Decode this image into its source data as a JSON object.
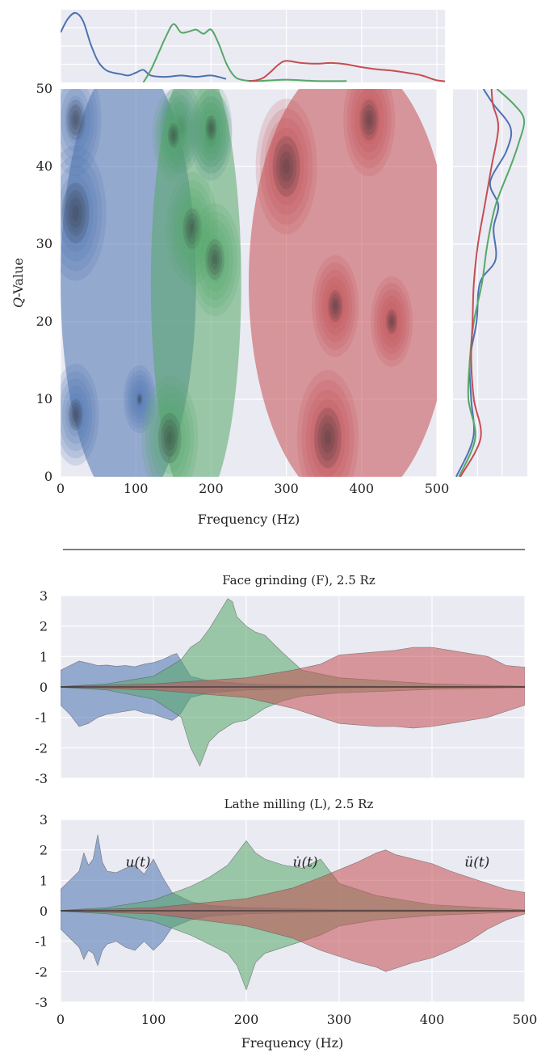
{
  "chart_data": [
    {
      "type": "heatmap",
      "subtype": "kde-contour-jointplot",
      "title": "",
      "xlabel": "Frequency (Hz)",
      "ylabel": "Q-Value",
      "ylabel_prefix": "Q",
      "ylabel_suffix": "-Value",
      "xlim": [
        0,
        500
      ],
      "ylim": [
        0,
        50
      ],
      "xticks": [
        "0",
        "100",
        "200",
        "300",
        "400",
        "500"
      ],
      "yticks": [
        "0",
        "10",
        "20",
        "30",
        "40",
        "50"
      ],
      "grid": true,
      "colors": {
        "blue": "#4c72b0",
        "green": "#55a868",
        "red": "#c44e52",
        "background": "#eaeaf2"
      },
      "series": [
        {
          "color": "blue",
          "x_range": [
            0,
            180
          ],
          "peaks": [
            {
              "x": 20,
              "y": 34,
              "w": 1.0
            },
            {
              "x": 20,
              "y": 46,
              "w": 0.8
            },
            {
              "x": 20,
              "y": 8,
              "w": 0.7
            },
            {
              "x": 160,
              "y": 45,
              "w": 0.6
            },
            {
              "x": 200,
              "y": 44,
              "w": 0.6
            },
            {
              "x": 105,
              "y": 10,
              "w": 0.4
            }
          ]
        },
        {
          "color": "green",
          "x_range": [
            120,
            240
          ],
          "peaks": [
            {
              "x": 145,
              "y": 5,
              "w": 0.9
            },
            {
              "x": 175,
              "y": 32,
              "w": 0.8
            },
            {
              "x": 205,
              "y": 28,
              "w": 0.8
            },
            {
              "x": 150,
              "y": 44,
              "w": 0.6
            },
            {
              "x": 200,
              "y": 45,
              "w": 0.6
            }
          ]
        },
        {
          "color": "red",
          "x_range": [
            250,
            520
          ],
          "peaks": [
            {
              "x": 300,
              "y": 40,
              "w": 1.0
            },
            {
              "x": 355,
              "y": 5,
              "w": 1.0
            },
            {
              "x": 410,
              "y": 46,
              "w": 0.8
            },
            {
              "x": 365,
              "y": 22,
              "w": 0.7
            },
            {
              "x": 440,
              "y": 20,
              "w": 0.6
            }
          ]
        }
      ],
      "marginal_x": [
        {
          "color": "blue",
          "x": [
            0,
            10,
            20,
            30,
            40,
            50,
            60,
            70,
            80,
            90,
            100,
            110,
            120,
            140,
            160,
            180,
            200,
            220
          ],
          "density": [
            0.72,
            0.92,
            1.0,
            0.88,
            0.55,
            0.3,
            0.18,
            0.14,
            0.12,
            0.1,
            0.14,
            0.18,
            0.1,
            0.08,
            0.1,
            0.08,
            0.1,
            0.05
          ]
        },
        {
          "color": "green",
          "x": [
            110,
            120,
            130,
            140,
            150,
            160,
            170,
            180,
            190,
            200,
            210,
            220,
            230,
            240,
            260,
            300,
            340,
            380
          ],
          "density": [
            0.0,
            0.18,
            0.42,
            0.66,
            0.84,
            0.72,
            0.73,
            0.76,
            0.7,
            0.76,
            0.56,
            0.28,
            0.1,
            0.04,
            0.02,
            0.04,
            0.02,
            0.02
          ]
        },
        {
          "color": "red",
          "x": [
            250,
            260,
            270,
            280,
            290,
            300,
            320,
            340,
            360,
            380,
            400,
            420,
            440,
            460,
            480,
            500,
            520
          ],
          "density": [
            0.02,
            0.03,
            0.07,
            0.16,
            0.26,
            0.31,
            0.28,
            0.27,
            0.28,
            0.26,
            0.22,
            0.19,
            0.17,
            0.14,
            0.1,
            0.03,
            0.01
          ]
        }
      ],
      "marginal_y": [
        {
          "color": "blue",
          "y": [
            0,
            5,
            10,
            15,
            20,
            25,
            28,
            32,
            35,
            38,
            42,
            45,
            48,
            50
          ],
          "density": [
            0.0,
            0.25,
            0.22,
            0.2,
            0.3,
            0.35,
            0.58,
            0.55,
            0.62,
            0.5,
            0.74,
            0.8,
            0.55,
            0.4
          ]
        },
        {
          "color": "green",
          "y": [
            0,
            5,
            10,
            15,
            20,
            25,
            30,
            35,
            40,
            43,
            46,
            48,
            50
          ],
          "density": [
            0.04,
            0.28,
            0.18,
            0.2,
            0.26,
            0.38,
            0.46,
            0.58,
            0.8,
            0.92,
            1.0,
            0.85,
            0.6
          ]
        },
        {
          "color": "red",
          "y": [
            0,
            5,
            10,
            15,
            20,
            25,
            30,
            35,
            40,
            45,
            48,
            50
          ],
          "density": [
            0.06,
            0.36,
            0.26,
            0.22,
            0.24,
            0.26,
            0.32,
            0.42,
            0.52,
            0.62,
            0.54,
            0.52
          ]
        }
      ]
    },
    {
      "type": "area",
      "title": "Face grinding (F), 2.5 Rz",
      "xlabel": "",
      "ylabel": "",
      "xlim": [
        0,
        500
      ],
      "ylim": [
        -3,
        3
      ],
      "yticks": [
        "3",
        "2",
        "1",
        "0",
        "-1",
        "-2",
        "-3"
      ],
      "grid": true,
      "mirrored": true,
      "series": [
        {
          "color": "blue",
          "x": [
            0,
            10,
            20,
            30,
            40,
            50,
            60,
            70,
            80,
            90,
            100,
            110,
            120,
            125,
            130,
            140,
            160,
            200,
            260,
            320,
            400,
            500
          ],
          "upper": [
            0.55,
            0.7,
            0.85,
            0.78,
            0.7,
            0.72,
            0.68,
            0.7,
            0.66,
            0.75,
            0.8,
            0.9,
            1.05,
            1.1,
            0.85,
            0.35,
            0.2,
            0.1,
            0.05,
            0.03,
            0.02,
            0.01
          ],
          "lower": [
            -0.6,
            -0.9,
            -1.3,
            -1.2,
            -1.0,
            -0.9,
            -0.85,
            -0.8,
            -0.75,
            -0.85,
            -0.9,
            -1.0,
            -1.1,
            -1.0,
            -0.85,
            -0.35,
            -0.2,
            -0.1,
            -0.05,
            -0.03,
            -0.02,
            -0.01
          ]
        },
        {
          "color": "green",
          "x": [
            0,
            50,
            100,
            130,
            140,
            150,
            160,
            170,
            180,
            185,
            190,
            200,
            210,
            220,
            240,
            260,
            300,
            400,
            500
          ],
          "upper": [
            0.01,
            0.1,
            0.35,
            0.9,
            1.3,
            1.5,
            1.9,
            2.4,
            2.9,
            2.8,
            2.3,
            2.0,
            1.8,
            1.7,
            1.1,
            0.55,
            0.3,
            0.1,
            0.02
          ],
          "lower": [
            -0.01,
            -0.1,
            -0.4,
            -1.0,
            -2.0,
            -2.6,
            -1.8,
            -1.5,
            -1.3,
            -1.2,
            -1.15,
            -1.1,
            -0.9,
            -0.7,
            -0.45,
            -0.3,
            -0.2,
            -0.08,
            -0.02
          ]
        },
        {
          "color": "red",
          "x": [
            0,
            100,
            200,
            250,
            280,
            300,
            320,
            340,
            360,
            380,
            400,
            420,
            440,
            460,
            480,
            500
          ],
          "upper": [
            0.01,
            0.1,
            0.3,
            0.55,
            0.75,
            1.05,
            1.1,
            1.15,
            1.2,
            1.3,
            1.3,
            1.2,
            1.1,
            1.0,
            0.7,
            0.65
          ],
          "lower": [
            -0.01,
            -0.1,
            -0.35,
            -0.7,
            -1.0,
            -1.2,
            -1.25,
            -1.3,
            -1.3,
            -1.35,
            -1.3,
            -1.2,
            -1.1,
            -1.0,
            -0.8,
            -0.6
          ]
        }
      ]
    },
    {
      "type": "area",
      "title": "Lathe milling (L), 2.5 Rz",
      "xlabel": "Frequency (Hz)",
      "ylabel": "",
      "xlim": [
        0,
        500
      ],
      "ylim": [
        -3,
        3
      ],
      "xticks": [
        "0",
        "100",
        "200",
        "300",
        "400",
        "500"
      ],
      "yticks": [
        "3",
        "2",
        "1",
        "0",
        "-1",
        "-2",
        "-3"
      ],
      "grid": true,
      "mirrored": true,
      "annotations": [
        {
          "text": "u(t)",
          "x": 70,
          "y": 1.6
        },
        {
          "text": "u̇(t)",
          "x": 250,
          "y": 1.6
        },
        {
          "text": "ü(t)",
          "x": 435,
          "y": 1.6
        }
      ],
      "series": [
        {
          "color": "blue",
          "x": [
            0,
            10,
            20,
            25,
            30,
            35,
            40,
            45,
            50,
            60,
            70,
            80,
            90,
            100,
            110,
            120,
            140,
            160,
            200,
            300,
            500
          ],
          "upper": [
            0.7,
            1.0,
            1.3,
            1.9,
            1.5,
            1.7,
            2.5,
            1.6,
            1.3,
            1.25,
            1.4,
            1.5,
            1.2,
            1.7,
            1.1,
            0.6,
            0.3,
            0.18,
            0.1,
            0.04,
            0.01
          ],
          "lower": [
            -0.6,
            -0.9,
            -1.2,
            -1.6,
            -1.3,
            -1.4,
            -1.8,
            -1.3,
            -1.1,
            -1.0,
            -1.2,
            -1.3,
            -1.0,
            -1.3,
            -1.0,
            -0.55,
            -0.3,
            -0.18,
            -0.1,
            -0.04,
            -0.01
          ]
        },
        {
          "color": "green",
          "x": [
            0,
            50,
            100,
            140,
            160,
            180,
            190,
            200,
            210,
            220,
            240,
            260,
            280,
            300,
            340,
            400,
            500
          ],
          "upper": [
            0.01,
            0.1,
            0.35,
            0.8,
            1.1,
            1.5,
            1.9,
            2.3,
            1.9,
            1.7,
            1.5,
            1.4,
            1.7,
            0.9,
            0.5,
            0.2,
            0.03
          ],
          "lower": [
            -0.01,
            -0.1,
            -0.35,
            -0.8,
            -1.1,
            -1.4,
            -1.8,
            -2.6,
            -1.7,
            -1.4,
            -1.2,
            -1.0,
            -0.8,
            -0.5,
            -0.3,
            -0.15,
            -0.03
          ]
        },
        {
          "color": "red",
          "x": [
            0,
            100,
            200,
            250,
            280,
            300,
            320,
            340,
            350,
            360,
            380,
            400,
            420,
            440,
            460,
            480,
            500
          ],
          "upper": [
            0.01,
            0.1,
            0.4,
            0.75,
            1.1,
            1.35,
            1.6,
            1.9,
            2.0,
            1.85,
            1.7,
            1.55,
            1.3,
            1.1,
            0.9,
            0.7,
            0.6
          ],
          "lower": [
            -0.01,
            -0.1,
            -0.5,
            -0.9,
            -1.3,
            -1.5,
            -1.7,
            -1.85,
            -2.0,
            -1.9,
            -1.7,
            -1.55,
            -1.3,
            -1.0,
            -0.6,
            -0.3,
            -0.1
          ]
        }
      ]
    }
  ]
}
